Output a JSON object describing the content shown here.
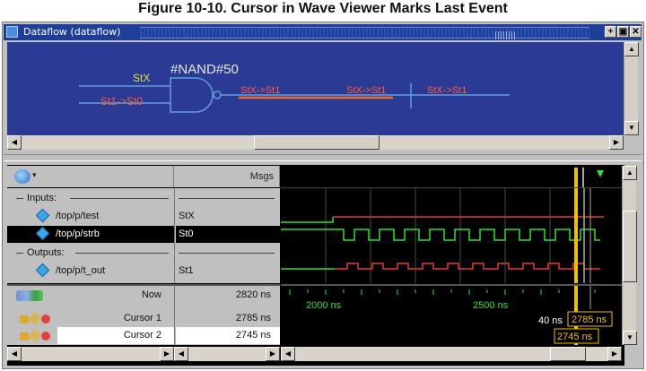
{
  "figure_title": "Figure 10-10. Cursor in Wave Viewer Marks Last Event",
  "window": {
    "title": "Dataflow (dataflow)",
    "buttons": [
      "+",
      "▣",
      "✕"
    ]
  },
  "dataflow": {
    "gate_label": "#NAND#50",
    "input_top": "StX",
    "input_bottom": "St1->St0",
    "output_labels": [
      "StX->St1",
      "StX->St1",
      "StX->St1"
    ],
    "colors": {
      "background": "#2b3a94",
      "wire": "#5f9fd8",
      "highlight": "#f26a2e",
      "label_yellow": "#e8e23a",
      "label_red": "#ff5a3a"
    }
  },
  "wave": {
    "header": {
      "msgs_label": "Msgs"
    },
    "groups": [
      {
        "label": "Inputs:",
        "signals": [
          {
            "name": "/top/p/test",
            "value": "StX"
          },
          {
            "name": "/top/p/strb",
            "value": "St0",
            "selected": true
          }
        ]
      },
      {
        "label": "Outputs:",
        "signals": [
          {
            "name": "/top/p/t_out",
            "value": "St1"
          }
        ]
      }
    ],
    "now": {
      "label": "Now",
      "value": "2820 ns"
    },
    "cursors": [
      {
        "label": "Cursor 1",
        "value": "2785 ns",
        "marker": "2785 ns"
      },
      {
        "label": "Cursor 2",
        "value": "2745 ns",
        "marker": "2745 ns"
      }
    ],
    "timeline": {
      "ticks": [
        "2000 ns",
        "2500 ns"
      ],
      "delta_label": "40 ns"
    },
    "colors": {
      "signal_green": "#2fe22f",
      "signal_red": "#e53a2a",
      "cursor": "#f0c000",
      "grid": "#555555",
      "timeline_text": "#2fe22f"
    }
  }
}
